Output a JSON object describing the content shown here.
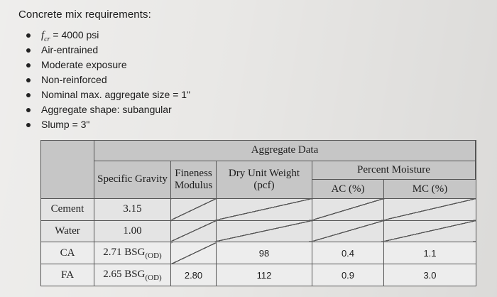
{
  "heading": "Concrete mix requirements:",
  "requirements": [
    {
      "prefix": "f",
      "prefix_sub": "cr",
      "text": " = 4000 psi"
    },
    {
      "text": "Air-entrained"
    },
    {
      "text": "Moderate exposure"
    },
    {
      "text": "Non-reinforced"
    },
    {
      "text": "Nominal max. aggregate size = 1\""
    },
    {
      "text": "Aggregate shape: subangular"
    },
    {
      "text": "Slump = 3\""
    }
  ],
  "table": {
    "title": "Aggregate Data",
    "headers": {
      "specific_gravity": "Specific Gravity",
      "fineness_line1": "Fineness",
      "fineness_line2": "Modulus",
      "dry_unit_weight_line1": "Dry Unit Weight",
      "dry_unit_weight_line2": "(pcf)",
      "percent_moisture": "Percent Moisture",
      "ac": "AC (%)",
      "mc": "MC (%)"
    },
    "rows": [
      {
        "label": "Cement",
        "sg": "3.15",
        "sg_sub": "",
        "fm": "",
        "duw": "",
        "ac": "",
        "mc": ""
      },
      {
        "label": "Water",
        "sg": "1.00",
        "sg_sub": "",
        "fm": "",
        "duw": "",
        "ac": "",
        "mc": ""
      },
      {
        "label": "CA",
        "sg": "2.71 BSG",
        "sg_sub": "(OD)",
        "fm": "",
        "duw": "98",
        "ac": "0.4",
        "mc": "1.1"
      },
      {
        "label": "FA",
        "sg": "2.65 BSG",
        "sg_sub": "(OD)",
        "fm": "2.80",
        "duw": "112",
        "ac": "0.9",
        "mc": "3.0"
      }
    ]
  }
}
